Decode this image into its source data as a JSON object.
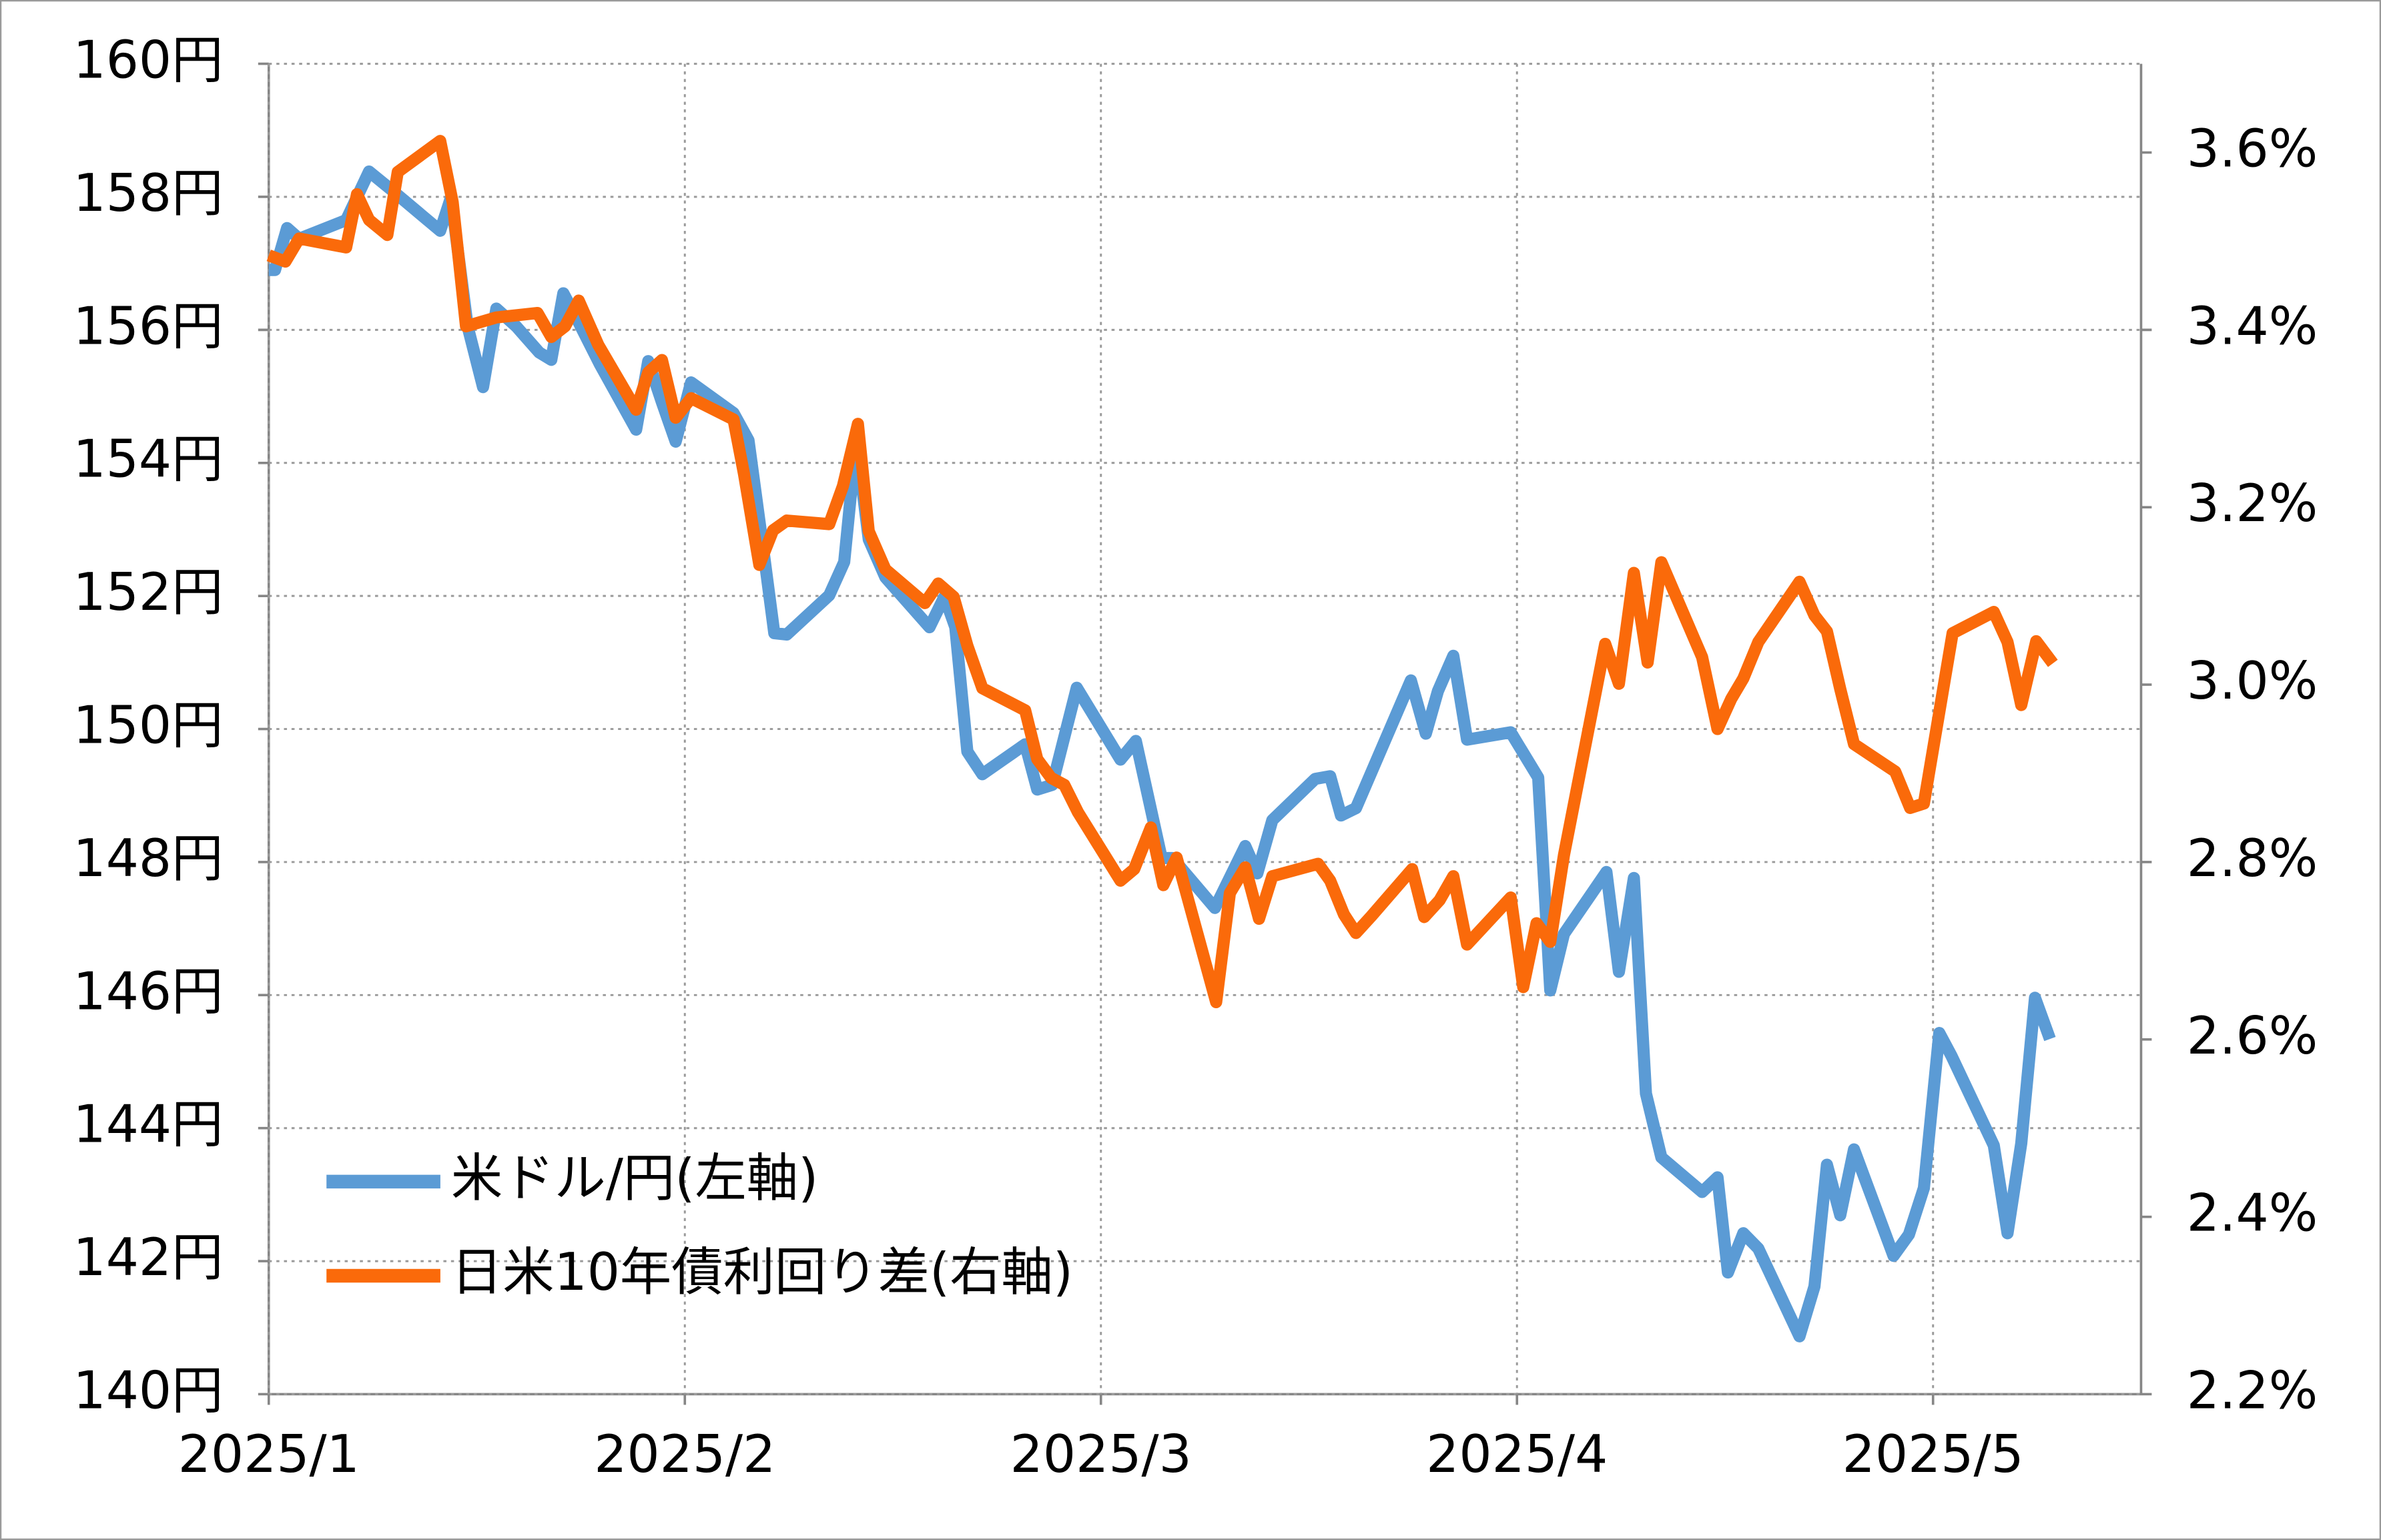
{
  "chart_data": {
    "type": "line",
    "xlim": [
      1,
      5.5
    ],
    "xticks": [
      {
        "value": 1,
        "label": "2025/1"
      },
      {
        "value": 2,
        "label": "2025/2"
      },
      {
        "value": 3,
        "label": "2025/3"
      },
      {
        "value": 4,
        "label": "2025/4"
      },
      {
        "value": 5,
        "label": "2025/5"
      }
    ],
    "ylim": [
      140,
      160
    ],
    "yticks": [
      {
        "value": 140,
        "label": "140円"
      },
      {
        "value": 142,
        "label": "142円"
      },
      {
        "value": 144,
        "label": "144円"
      },
      {
        "value": 146,
        "label": "146円"
      },
      {
        "value": 148,
        "label": "148円"
      },
      {
        "value": 150,
        "label": "150円"
      },
      {
        "value": 152,
        "label": "152円"
      },
      {
        "value": 154,
        "label": "154円"
      },
      {
        "value": 156,
        "label": "156円"
      },
      {
        "value": 158,
        "label": "158円"
      },
      {
        "value": 160,
        "label": "160円"
      }
    ],
    "y2lim": [
      2.2,
      3.7
    ],
    "y2ticks": [
      {
        "value": 2.2,
        "label": "2.2%"
      },
      {
        "value": 2.4,
        "label": "2.4%"
      },
      {
        "value": 2.6,
        "label": "2.6%"
      },
      {
        "value": 2.8,
        "label": "2.8%"
      },
      {
        "value": 3.0,
        "label": "3.0%"
      },
      {
        "value": 3.2,
        "label": "3.2%"
      },
      {
        "value": 3.4,
        "label": "3.4%"
      },
      {
        "value": 3.6,
        "label": "3.6%"
      }
    ],
    "grid": true,
    "legend": "lower left",
    "series": [
      {
        "name": "米ドル/円(左軸)",
        "color": "#5b9bd5",
        "axis": "y",
        "x": [
          1.0,
          1.015,
          1.044,
          1.073,
          1.186,
          1.241,
          1.296,
          1.412,
          1.438,
          1.478,
          1.515,
          1.547,
          1.595,
          1.65,
          1.679,
          1.708,
          1.741,
          1.796,
          1.883,
          1.912,
          1.945,
          1.978,
          2.015,
          2.117,
          2.153,
          2.19,
          2.215,
          2.245,
          2.347,
          2.383,
          2.412,
          2.442,
          2.482,
          2.588,
          2.624,
          2.65,
          2.679,
          2.715,
          2.818,
          2.847,
          2.883,
          2.942,
          3.047,
          3.084,
          3.146,
          3.172,
          3.274,
          3.347,
          3.376,
          3.412,
          3.515,
          3.551,
          3.577,
          3.613,
          3.745,
          3.781,
          3.81,
          3.847,
          3.88,
          3.985,
          4.051,
          4.08,
          4.113,
          4.215,
          4.245,
          4.281,
          4.31,
          4.347,
          4.445,
          4.482,
          4.507,
          4.544,
          4.58,
          4.679,
          4.715,
          4.745,
          4.777,
          4.81,
          4.905,
          4.942,
          4.978,
          5.015,
          5.044,
          5.146,
          5.179,
          5.212,
          5.245,
          5.281
        ],
        "values": [
          156.9,
          156.9,
          157.53,
          157.37,
          157.65,
          158.38,
          158.1,
          157.49,
          157.99,
          156.05,
          155.14,
          156.32,
          156.05,
          155.66,
          155.55,
          156.55,
          156.16,
          155.48,
          154.5,
          155.53,
          154.91,
          154.32,
          155.21,
          154.75,
          154.34,
          152.63,
          151.44,
          151.42,
          152.01,
          152.51,
          154.34,
          152.85,
          152.28,
          151.53,
          151.99,
          151.53,
          149.66,
          149.32,
          149.77,
          149.09,
          149.16,
          150.62,
          149.54,
          149.82,
          148.06,
          148.06,
          147.31,
          148.24,
          147.83,
          148.63,
          149.25,
          149.29,
          148.7,
          148.81,
          150.73,
          149.93,
          150.57,
          151.1,
          149.84,
          149.95,
          149.27,
          146.07,
          146.92,
          147.85,
          146.35,
          147.76,
          144.52,
          143.56,
          143.04,
          143.26,
          141.83,
          142.42,
          142.19,
          140.87,
          141.62,
          143.45,
          142.69,
          143.68,
          142.08,
          142.4,
          143.1,
          145.43,
          145.09,
          143.74,
          142.42,
          143.77,
          145.96,
          145.34
        ]
      },
      {
        "name": "日米10年債利回り差(右軸)",
        "color": "#fa6a0a",
        "axis": "y2",
        "x": [
          1.0,
          1.04,
          1.073,
          1.186,
          1.212,
          1.241,
          1.285,
          1.31,
          1.412,
          1.442,
          1.474,
          1.547,
          1.646,
          1.679,
          1.712,
          1.745,
          1.792,
          1.883,
          1.912,
          1.945,
          1.978,
          2.015,
          2.117,
          2.142,
          2.179,
          2.212,
          2.245,
          2.347,
          2.38,
          2.416,
          2.442,
          2.482,
          2.577,
          2.609,
          2.646,
          2.679,
          2.715,
          2.818,
          2.847,
          2.88,
          2.912,
          2.945,
          3.047,
          3.08,
          3.12,
          3.15,
          3.182,
          3.277,
          3.31,
          3.347,
          3.38,
          3.412,
          3.522,
          3.551,
          3.584,
          3.613,
          3.65,
          3.748,
          3.777,
          3.814,
          3.847,
          3.88,
          3.985,
          4.015,
          4.047,
          4.08,
          4.113,
          4.212,
          4.245,
          4.281,
          4.314,
          4.347,
          4.445,
          4.482,
          4.515,
          4.544,
          4.58,
          4.679,
          4.715,
          4.745,
          4.777,
          4.81,
          4.909,
          4.945,
          4.978,
          5.047,
          5.146,
          5.179,
          5.212,
          5.248,
          5.288
        ],
        "values": [
          3.484,
          3.477,
          3.503,
          3.493,
          3.553,
          3.524,
          3.507,
          3.578,
          3.613,
          3.544,
          3.404,
          3.414,
          3.419,
          3.392,
          3.404,
          3.433,
          3.383,
          3.31,
          3.352,
          3.366,
          3.301,
          3.323,
          3.299,
          3.238,
          3.135,
          3.174,
          3.185,
          3.181,
          3.224,
          3.294,
          3.173,
          3.13,
          3.092,
          3.114,
          3.099,
          3.044,
          2.996,
          2.971,
          2.916,
          2.895,
          2.887,
          2.856,
          2.779,
          2.792,
          2.839,
          2.774,
          2.805,
          2.642,
          2.765,
          2.794,
          2.736,
          2.784,
          2.798,
          2.779,
          2.741,
          2.72,
          2.739,
          2.792,
          2.738,
          2.757,
          2.784,
          2.707,
          2.76,
          2.659,
          2.731,
          2.71,
          2.808,
          3.046,
          3.001,
          3.126,
          3.025,
          3.138,
          3.031,
          2.95,
          2.984,
          3.007,
          3.048,
          3.116,
          3.078,
          3.06,
          2.995,
          2.933,
          2.902,
          2.861,
          2.866,
          3.058,
          3.082,
          3.048,
          2.977,
          3.049,
          3.024
        ]
      }
    ]
  }
}
